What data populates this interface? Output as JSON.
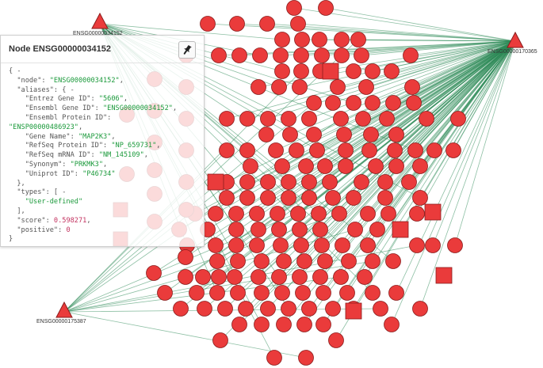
{
  "graph": {
    "hub_labels": {
      "top_left": "ENSG00000034152",
      "top_right": "ENSG00000170365",
      "bottom_left": "ENSG00000175387"
    },
    "colors": {
      "node_fill": "#ea3b3b",
      "node_stroke": "#8a1c1c",
      "edge": "#2e8b57"
    }
  },
  "panel": {
    "title": "Node ENSG00000034152",
    "pin_icon": "pin-icon",
    "json_lines": [
      [
        {
          "t": "p",
          "v": "{ -"
        }
      ],
      [
        {
          "t": "k",
          "v": "  \"node\": "
        },
        {
          "t": "s",
          "v": "\"ENSG00000034152\""
        },
        {
          "t": "p",
          "v": ","
        }
      ],
      [
        {
          "t": "k",
          "v": "  \"aliases\": { -"
        }
      ],
      [
        {
          "t": "k",
          "v": "    \"Entrez Gene ID\": "
        },
        {
          "t": "s",
          "v": "\"5606\""
        },
        {
          "t": "p",
          "v": ","
        }
      ],
      [
        {
          "t": "k",
          "v": "    \"Ensembl Gene ID\": "
        },
        {
          "t": "s",
          "v": "\"ENSG00000034152\""
        },
        {
          "t": "p",
          "v": ","
        }
      ],
      [
        {
          "t": "k",
          "v": "    \"Ensembl Protein ID\":"
        }
      ],
      [
        {
          "t": "s",
          "v": "\"ENSP00000486923\""
        },
        {
          "t": "p",
          "v": ","
        }
      ],
      [
        {
          "t": "k",
          "v": "    \"Gene Name\": "
        },
        {
          "t": "s",
          "v": "\"MAP2K3\""
        },
        {
          "t": "p",
          "v": ","
        }
      ],
      [
        {
          "t": "k",
          "v": "    \"RefSeq Protein ID\": "
        },
        {
          "t": "s",
          "v": "\"NP_659731\""
        },
        {
          "t": "p",
          "v": ","
        }
      ],
      [
        {
          "t": "k",
          "v": "    \"RefSeq mRNA ID\": "
        },
        {
          "t": "s",
          "v": "\"NM_145109\""
        },
        {
          "t": "p",
          "v": ","
        }
      ],
      [
        {
          "t": "k",
          "v": "    \"Synonym\": "
        },
        {
          "t": "s",
          "v": "\"PRKMK3\""
        },
        {
          "t": "p",
          "v": ","
        }
      ],
      [
        {
          "t": "k",
          "v": "    \"Uniprot ID\": "
        },
        {
          "t": "s",
          "v": "\"P46734\""
        }
      ],
      [
        {
          "t": "p",
          "v": "  },"
        }
      ],
      [
        {
          "t": "k",
          "v": "  \"types\": [ -"
        }
      ],
      [
        {
          "t": "s",
          "v": "    \"User-defined\""
        }
      ],
      [
        {
          "t": "p",
          "v": "  ],"
        }
      ],
      [
        {
          "t": "k",
          "v": "  \"score\": "
        },
        {
          "t": "n",
          "v": "0.598271"
        },
        {
          "t": "p",
          "v": ","
        }
      ],
      [
        {
          "t": "k",
          "v": "  \"positive\": "
        },
        {
          "t": "n",
          "v": "0"
        }
      ],
      [
        {
          "t": "p",
          "v": "}"
        }
      ]
    ]
  }
}
